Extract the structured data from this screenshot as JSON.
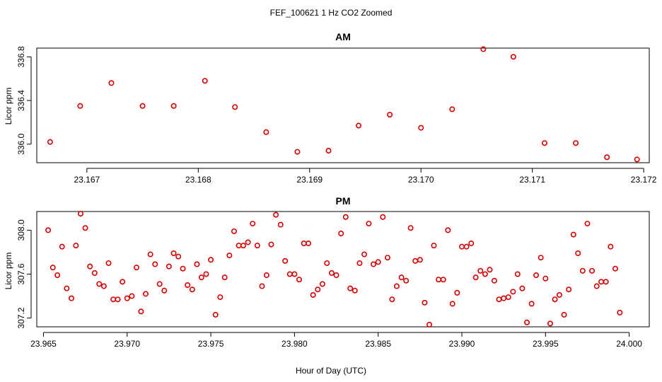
{
  "figure": {
    "title": "FEF_100621  1 Hz CO2 Zoomed",
    "xlabel": "Hour of Day (UTC)"
  },
  "colors": {
    "points": "#d40000",
    "axes": "#000000"
  },
  "chart_data": [
    {
      "type": "scatter",
      "title": "AM",
      "xlabel": "",
      "ylabel": "Licor ppm",
      "xlim": [
        23.16655,
        23.17205
      ],
      "ylim": [
        335.83,
        336.88
      ],
      "xticks": [
        23.167,
        23.168,
        23.169,
        23.17,
        23.171,
        23.172
      ],
      "xtick_labels": [
        "23.167",
        "23.168",
        "23.169",
        "23.170",
        "23.171",
        "23.172"
      ],
      "yticks": [
        336.0,
        336.4,
        336.8
      ],
      "ytick_labels": [
        "336.0",
        "336.4",
        "336.8"
      ],
      "series": [
        {
          "x": [
            23.16667,
            23.16694,
            23.16722,
            23.1675,
            23.16778,
            23.16806,
            23.16833,
            23.16861,
            23.16889,
            23.16917,
            23.16944,
            23.16972,
            23.17,
            23.17028,
            23.17056,
            23.17083,
            23.17111,
            23.17139,
            23.17167,
            23.17194
          ],
          "y": [
            336.02,
            336.35,
            336.56,
            336.35,
            336.35,
            336.58,
            336.34,
            336.11,
            335.93,
            335.94,
            336.17,
            336.27,
            336.15,
            336.32,
            336.87,
            336.8,
            336.01,
            336.01,
            335.88,
            335.86
          ]
        }
      ]
    },
    {
      "type": "scatter",
      "title": "PM",
      "xlabel": "",
      "ylabel": "Licor ppm",
      "xlim": [
        23.9646,
        24.0012
      ],
      "ylim": [
        307.12,
        308.17
      ],
      "xticks": [
        23.965,
        23.97,
        23.975,
        23.98,
        23.985,
        23.99,
        23.995,
        24.0
      ],
      "xtick_labels": [
        "23.965",
        "23.970",
        "23.975",
        "23.980",
        "23.985",
        "23.990",
        "23.995",
        "24.000"
      ],
      "yticks": [
        307.2,
        307.6,
        308.0
      ],
      "ytick_labels": [
        "307.2",
        "307.6",
        "308.0"
      ],
      "series": [
        {
          "x": [
            23.96528,
            23.96556,
            23.96583,
            23.96611,
            23.96639,
            23.96667,
            23.96694,
            23.96722,
            23.9675,
            23.96778,
            23.96806,
            23.96833,
            23.96861,
            23.96889,
            23.96917,
            23.96944,
            23.96972,
            23.97,
            23.97028,
            23.97056,
            23.97083,
            23.97111,
            23.97139,
            23.97167,
            23.97194,
            23.97222,
            23.9725,
            23.97278,
            23.97306,
            23.97333,
            23.97361,
            23.97389,
            23.97417,
            23.97444,
            23.97472,
            23.975,
            23.97528,
            23.97556,
            23.97583,
            23.97611,
            23.97639,
            23.97667,
            23.97694,
            23.97722,
            23.9775,
            23.97778,
            23.97806,
            23.97833,
            23.97861,
            23.97889,
            23.97917,
            23.97944,
            23.97972,
            23.98,
            23.98028,
            23.98056,
            23.98083,
            23.98111,
            23.98139,
            23.98167,
            23.98194,
            23.98222,
            23.9825,
            23.98278,
            23.98306,
            23.98333,
            23.98361,
            23.98389,
            23.98417,
            23.98444,
            23.98472,
            23.985,
            23.98528,
            23.98556,
            23.98583,
            23.98611,
            23.98639,
            23.98667,
            23.98694,
            23.98722,
            23.9875,
            23.98778,
            23.98806,
            23.98833,
            23.98861,
            23.98889,
            23.98917,
            23.98944,
            23.98972,
            23.99,
            23.99028,
            23.99056,
            23.99083,
            23.99111,
            23.99139,
            23.99167,
            23.99194,
            23.99222,
            23.9925,
            23.99278,
            23.99306,
            23.99333,
            23.99361,
            23.99389,
            23.99417,
            23.99444,
            23.99472,
            23.995,
            23.99528,
            23.99556,
            23.99583,
            23.99611,
            23.99639,
            23.99667,
            23.99694,
            23.99722,
            23.9975,
            23.99778,
            23.99806,
            23.99833,
            23.99861,
            23.99889,
            23.99917,
            23.99944
          ],
          "y": [
            308.0,
            307.66,
            307.59,
            307.85,
            307.47,
            307.38,
            307.86,
            308.15,
            308.02,
            307.67,
            307.61,
            307.51,
            307.49,
            307.7,
            307.37,
            307.37,
            307.53,
            307.38,
            307.4,
            307.66,
            307.26,
            307.42,
            307.78,
            307.69,
            307.51,
            307.45,
            307.67,
            307.79,
            307.76,
            307.65,
            307.5,
            307.46,
            307.69,
            307.57,
            307.6,
            307.73,
            307.23,
            307.39,
            307.57,
            307.77,
            307.99,
            307.86,
            307.86,
            307.89,
            308.06,
            307.86,
            307.49,
            307.59,
            307.87,
            308.14,
            308.05,
            307.72,
            307.6,
            307.6,
            307.55,
            307.88,
            307.88,
            307.41,
            307.46,
            307.51,
            307.7,
            307.61,
            307.59,
            307.97,
            308.12,
            307.47,
            307.45,
            307.7,
            307.78,
            308.06,
            307.69,
            307.71,
            308.12,
            307.75,
            307.37,
            307.49,
            307.57,
            307.54,
            308.02,
            307.72,
            307.73,
            307.34,
            307.14,
            307.86,
            307.55,
            307.55,
            308.0,
            307.33,
            307.43,
            307.85,
            307.85,
            307.88,
            307.57,
            307.63,
            307.6,
            307.64,
            307.54,
            307.37,
            307.38,
            307.39,
            307.44,
            307.6,
            307.47,
            307.16,
            307.33,
            307.59,
            307.75,
            307.56,
            307.15,
            307.37,
            307.41,
            307.23,
            307.46,
            307.96,
            307.79,
            307.63,
            308.06,
            307.63,
            307.49,
            307.53,
            307.53,
            307.85,
            307.65,
            307.25
          ]
        }
      ]
    }
  ]
}
